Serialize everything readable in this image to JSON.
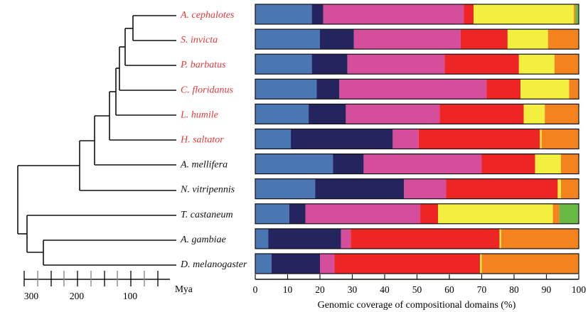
{
  "chart_data": {
    "type": "bar",
    "stacked": true,
    "orientation": "horizontal",
    "xlabel": "Genomic coverage of compositional domains (%)",
    "xlim": [
      0,
      100
    ],
    "xticks": [
      "0",
      "10",
      "20",
      "30",
      "40",
      "50",
      "60",
      "70",
      "80",
      "90",
      "100"
    ],
    "segment_colors": [
      "#4a76b4",
      "#24255e",
      "#d44e9c",
      "#ee2525",
      "#f2ef3f",
      "#f4821f",
      "#69b944"
    ],
    "categories": [
      {
        "name": "A. cephalotes",
        "color": "#e23a3a",
        "values": [
          17.5,
          3.5,
          43.5,
          3,
          31,
          0.5,
          1
        ]
      },
      {
        "name": "S. invicta",
        "color": "#e23a3a",
        "values": [
          20,
          10.5,
          33,
          14.5,
          12.5,
          9.5,
          0
        ]
      },
      {
        "name": "P. barbatus",
        "color": "#e23a3a",
        "values": [
          17.5,
          11,
          30,
          23,
          11,
          7.5,
          0
        ]
      },
      {
        "name": "C. floridanus",
        "color": "#e23a3a",
        "values": [
          19,
          7,
          45.5,
          10.5,
          15,
          3,
          0
        ]
      },
      {
        "name": "L. humile",
        "color": "#e23a3a",
        "values": [
          16.5,
          11.5,
          29,
          26,
          6.5,
          10.5,
          0
        ]
      },
      {
        "name": "H. saltator",
        "color": "#e23a3a",
        "values": [
          11,
          31.5,
          8,
          37.5,
          0.5,
          11.5,
          0
        ]
      },
      {
        "name": "A. mellifera",
        "color": "#111111",
        "values": [
          24,
          9.5,
          36.5,
          16.5,
          8,
          5.5,
          0
        ]
      },
      {
        "name": "N. vitripennis",
        "color": "#111111",
        "values": [
          18.5,
          27.5,
          13,
          34.5,
          1,
          5.5,
          0
        ]
      },
      {
        "name": "T. castaneum",
        "color": "#111111",
        "values": [
          10.5,
          5,
          35.5,
          5.5,
          35.5,
          2,
          6
        ]
      },
      {
        "name": "A. gambiae",
        "color": "#111111",
        "values": [
          4,
          22.5,
          3,
          46,
          0.5,
          24,
          0
        ]
      },
      {
        "name": "D. melanogaster",
        "color": "#111111",
        "values": [
          5,
          15,
          4.5,
          45,
          0.5,
          30,
          0
        ]
      }
    ]
  },
  "timescale": {
    "unit": "Mya",
    "ticks": [
      "300",
      "200",
      "100"
    ]
  }
}
